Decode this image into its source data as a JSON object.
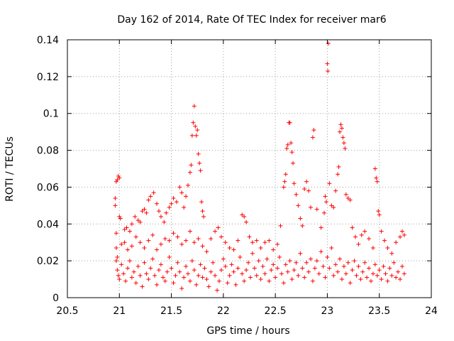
{
  "chart_data": {
    "type": "scatter",
    "title": "Day 162 of 2014, Rate Of TEC Index for receiver mar6",
    "xlabel": "GPS time / hours",
    "ylabel": "ROTI / TECUs",
    "xlim": [
      20.5,
      24
    ],
    "ylim": [
      0,
      0.14
    ],
    "xticks": [
      "20.5",
      "21",
      "21.5",
      "22",
      "22.5",
      "23",
      "23.5",
      "24"
    ],
    "yticks": [
      "0",
      "0.02",
      "0.04",
      "0.06",
      "0.08",
      "0.1",
      "0.12",
      "0.14"
    ],
    "grid": true,
    "marker": "+",
    "series_color": "#ff0000",
    "series": [
      {
        "name": "ROTI",
        "points": [
          [
            20.96,
            0.05
          ],
          [
            20.96,
            0.054
          ],
          [
            20.97,
            0.063
          ],
          [
            20.98,
            0.064
          ],
          [
            20.99,
            0.066
          ],
          [
            21.0,
            0.065
          ],
          [
            20.97,
            0.035
          ],
          [
            21.0,
            0.044
          ],
          [
            21.01,
            0.043
          ],
          [
            20.97,
            0.027
          ],
          [
            20.98,
            0.022
          ],
          [
            21.02,
            0.029
          ],
          [
            21.05,
            0.037
          ],
          [
            21.07,
            0.038
          ],
          [
            21.1,
            0.036
          ],
          [
            21.12,
            0.04
          ],
          [
            21.15,
            0.044
          ],
          [
            21.18,
            0.042
          ],
          [
            21.2,
            0.041
          ],
          [
            21.22,
            0.047
          ],
          [
            21.24,
            0.048
          ],
          [
            21.26,
            0.046
          ],
          [
            21.28,
            0.053
          ],
          [
            21.3,
            0.055
          ],
          [
            21.33,
            0.057
          ],
          [
            21.36,
            0.051
          ],
          [
            21.38,
            0.047
          ],
          [
            21.4,
            0.044
          ],
          [
            21.43,
            0.041
          ],
          [
            21.45,
            0.046
          ],
          [
            21.48,
            0.049
          ],
          [
            21.5,
            0.051
          ],
          [
            21.52,
            0.054
          ],
          [
            21.55,
            0.052
          ],
          [
            21.58,
            0.06
          ],
          [
            21.6,
            0.057
          ],
          [
            21.62,
            0.049
          ],
          [
            21.64,
            0.055
          ],
          [
            21.66,
            0.061
          ],
          [
            21.68,
            0.068
          ],
          [
            21.69,
            0.072
          ],
          [
            21.7,
            0.088
          ],
          [
            21.71,
            0.095
          ],
          [
            21.72,
            0.104
          ],
          [
            21.73,
            0.093
          ],
          [
            21.74,
            0.088
          ],
          [
            21.75,
            0.091
          ],
          [
            21.76,
            0.078
          ],
          [
            21.77,
            0.073
          ],
          [
            21.78,
            0.069
          ],
          [
            21.79,
            0.052
          ],
          [
            21.8,
            0.047
          ],
          [
            21.81,
            0.044
          ],
          [
            21.05,
            0.03
          ],
          [
            21.08,
            0.026
          ],
          [
            21.12,
            0.028
          ],
          [
            21.16,
            0.033
          ],
          [
            21.2,
            0.03
          ],
          [
            21.24,
            0.027
          ],
          [
            21.28,
            0.031
          ],
          [
            21.32,
            0.034
          ],
          [
            21.36,
            0.026
          ],
          [
            21.4,
            0.029
          ],
          [
            21.44,
            0.032
          ],
          [
            21.48,
            0.031
          ],
          [
            21.52,
            0.035
          ],
          [
            21.56,
            0.033
          ],
          [
            21.6,
            0.029
          ],
          [
            21.64,
            0.031
          ],
          [
            21.68,
            0.036
          ],
          [
            21.72,
            0.03
          ],
          [
            21.76,
            0.032
          ],
          [
            21.8,
            0.028
          ],
          [
            21.84,
            0.025
          ],
          [
            21.88,
            0.032
          ],
          [
            21.92,
            0.036
          ],
          [
            21.95,
            0.038
          ],
          [
            21.98,
            0.033
          ],
          [
            22.02,
            0.03
          ],
          [
            22.06,
            0.027
          ],
          [
            22.1,
            0.026
          ],
          [
            22.14,
            0.031
          ],
          [
            22.18,
            0.045
          ],
          [
            22.2,
            0.044
          ],
          [
            22.22,
            0.041
          ],
          [
            22.25,
            0.033
          ],
          [
            22.28,
            0.03
          ],
          [
            22.32,
            0.031
          ],
          [
            22.36,
            0.027
          ],
          [
            22.4,
            0.03
          ],
          [
            22.44,
            0.031
          ],
          [
            22.48,
            0.026
          ],
          [
            22.52,
            0.029
          ],
          [
            22.55,
            0.039
          ],
          [
            22.58,
            0.06
          ],
          [
            22.59,
            0.063
          ],
          [
            22.6,
            0.067
          ],
          [
            22.61,
            0.081
          ],
          [
            22.62,
            0.083
          ],
          [
            22.63,
            0.095
          ],
          [
            22.64,
            0.095
          ],
          [
            22.65,
            0.084
          ],
          [
            22.66,
            0.079
          ],
          [
            22.67,
            0.073
          ],
          [
            22.68,
            0.062
          ],
          [
            22.7,
            0.056
          ],
          [
            22.72,
            0.05
          ],
          [
            22.74,
            0.043
          ],
          [
            22.76,
            0.039
          ],
          [
            22.78,
            0.059
          ],
          [
            22.8,
            0.063
          ],
          [
            22.82,
            0.058
          ],
          [
            22.84,
            0.049
          ],
          [
            22.86,
            0.087
          ],
          [
            22.87,
            0.091
          ],
          [
            22.9,
            0.048
          ],
          [
            22.94,
            0.038
          ],
          [
            22.97,
            0.046
          ],
          [
            22.98,
            0.055
          ],
          [
            22.99,
            0.052
          ],
          [
            23.0,
            0.127
          ],
          [
            23.005,
            0.123
          ],
          [
            23.01,
            0.138
          ],
          [
            23.02,
            0.062
          ],
          [
            23.04,
            0.05
          ],
          [
            23.06,
            0.049
          ],
          [
            23.08,
            0.058
          ],
          [
            23.1,
            0.067
          ],
          [
            23.11,
            0.071
          ],
          [
            23.12,
            0.09
          ],
          [
            23.13,
            0.094
          ],
          [
            23.14,
            0.092
          ],
          [
            23.15,
            0.087
          ],
          [
            23.16,
            0.084
          ],
          [
            23.17,
            0.081
          ],
          [
            23.18,
            0.056
          ],
          [
            23.2,
            0.054
          ],
          [
            23.22,
            0.053
          ],
          [
            23.24,
            0.038
          ],
          [
            23.27,
            0.033
          ],
          [
            23.3,
            0.029
          ],
          [
            23.33,
            0.034
          ],
          [
            23.36,
            0.036
          ],
          [
            23.4,
            0.032
          ],
          [
            23.44,
            0.027
          ],
          [
            23.46,
            0.07
          ],
          [
            23.47,
            0.065
          ],
          [
            23.48,
            0.063
          ],
          [
            23.49,
            0.047
          ],
          [
            23.5,
            0.045
          ],
          [
            23.52,
            0.036
          ],
          [
            23.55,
            0.031
          ],
          [
            23.58,
            0.027
          ],
          [
            23.62,
            0.024
          ],
          [
            23.66,
            0.03
          ],
          [
            23.7,
            0.033
          ],
          [
            23.72,
            0.036
          ],
          [
            23.74,
            0.034
          ],
          [
            20.97,
            0.02
          ],
          [
            20.98,
            0.015
          ],
          [
            20.99,
            0.012
          ],
          [
            21.0,
            0.01
          ],
          [
            21.02,
            0.018
          ],
          [
            21.04,
            0.013
          ],
          [
            21.06,
            0.009
          ],
          [
            21.08,
            0.016
          ],
          [
            21.1,
            0.02
          ],
          [
            21.12,
            0.011
          ],
          [
            21.14,
            0.014
          ],
          [
            21.16,
            0.008
          ],
          [
            21.18,
            0.017
          ],
          [
            21.2,
            0.012
          ],
          [
            21.22,
            0.006
          ],
          [
            21.24,
            0.019
          ],
          [
            21.26,
            0.013
          ],
          [
            21.28,
            0.01
          ],
          [
            21.3,
            0.016
          ],
          [
            21.32,
            0.021
          ],
          [
            21.34,
            0.012
          ],
          [
            21.36,
            0.007
          ],
          [
            21.38,
            0.015
          ],
          [
            21.4,
            0.018
          ],
          [
            21.42,
            0.011
          ],
          [
            21.44,
            0.009
          ],
          [
            21.46,
            0.014
          ],
          [
            21.48,
            0.022
          ],
          [
            21.5,
            0.016
          ],
          [
            21.52,
            0.008
          ],
          [
            21.54,
            0.012
          ],
          [
            21.56,
            0.019
          ],
          [
            21.58,
            0.014
          ],
          [
            21.6,
            0.005
          ],
          [
            21.62,
            0.011
          ],
          [
            21.64,
            0.017
          ],
          [
            21.66,
            0.013
          ],
          [
            21.68,
            0.009
          ],
          [
            21.7,
            0.02
          ],
          [
            21.72,
            0.015
          ],
          [
            21.74,
            0.007
          ],
          [
            21.76,
            0.012
          ],
          [
            21.78,
            0.018
          ],
          [
            21.8,
            0.011
          ],
          [
            21.82,
            0.016
          ],
          [
            21.84,
            0.01
          ],
          [
            21.86,
            0.006
          ],
          [
            21.88,
            0.014
          ],
          [
            21.9,
            0.019
          ],
          [
            21.92,
            0.012
          ],
          [
            21.94,
            0.004
          ],
          [
            21.96,
            0.009
          ],
          [
            21.98,
            0.015
          ],
          [
            22.0,
            0.021
          ],
          [
            22.02,
            0.017
          ],
          [
            22.04,
            0.008
          ],
          [
            22.06,
            0.012
          ],
          [
            22.08,
            0.018
          ],
          [
            22.1,
            0.014
          ],
          [
            22.12,
            0.007
          ],
          [
            22.14,
            0.016
          ],
          [
            22.16,
            0.022
          ],
          [
            22.18,
            0.013
          ],
          [
            22.2,
            0.009
          ],
          [
            22.22,
            0.015
          ],
          [
            22.24,
            0.019
          ],
          [
            22.26,
            0.011
          ],
          [
            22.28,
            0.024
          ],
          [
            22.3,
            0.016
          ],
          [
            22.32,
            0.012
          ],
          [
            22.34,
            0.02
          ],
          [
            22.36,
            0.01
          ],
          [
            22.38,
            0.017
          ],
          [
            22.4,
            0.013
          ],
          [
            22.42,
            0.021
          ],
          [
            22.44,
            0.009
          ],
          [
            22.46,
            0.015
          ],
          [
            22.48,
            0.018
          ],
          [
            22.5,
            0.011
          ],
          [
            22.52,
            0.016
          ],
          [
            22.54,
            0.022
          ],
          [
            22.56,
            0.013
          ],
          [
            22.58,
            0.008
          ],
          [
            22.6,
            0.018
          ],
          [
            22.62,
            0.014
          ],
          [
            22.64,
            0.02
          ],
          [
            22.66,
            0.01
          ],
          [
            22.68,
            0.015
          ],
          [
            22.7,
            0.019
          ],
          [
            22.72,
            0.012
          ],
          [
            22.74,
            0.024
          ],
          [
            22.76,
            0.016
          ],
          [
            22.78,
            0.011
          ],
          [
            22.8,
            0.019
          ],
          [
            22.82,
            0.014
          ],
          [
            22.84,
            0.021
          ],
          [
            22.86,
            0.009
          ],
          [
            22.88,
            0.016
          ],
          [
            22.9,
            0.02
          ],
          [
            22.92,
            0.013
          ],
          [
            22.94,
            0.025
          ],
          [
            22.96,
            0.017
          ],
          [
            22.98,
            0.011
          ],
          [
            23.0,
            0.022
          ],
          [
            23.02,
            0.016
          ],
          [
            23.04,
            0.027
          ],
          [
            23.06,
            0.012
          ],
          [
            23.08,
            0.018
          ],
          [
            23.1,
            0.014
          ],
          [
            23.12,
            0.021
          ],
          [
            23.14,
            0.01
          ],
          [
            23.16,
            0.017
          ],
          [
            23.18,
            0.013
          ],
          [
            23.2,
            0.019
          ],
          [
            23.22,
            0.008
          ],
          [
            23.24,
            0.015
          ],
          [
            23.26,
            0.02
          ],
          [
            23.28,
            0.012
          ],
          [
            23.3,
            0.017
          ],
          [
            23.32,
            0.01
          ],
          [
            23.34,
            0.014
          ],
          [
            23.36,
            0.019
          ],
          [
            23.38,
            0.011
          ],
          [
            23.4,
            0.016
          ],
          [
            23.42,
            0.009
          ],
          [
            23.44,
            0.013
          ],
          [
            23.46,
            0.018
          ],
          [
            23.48,
            0.012
          ],
          [
            23.5,
            0.015
          ],
          [
            23.52,
            0.01
          ],
          [
            23.54,
            0.017
          ],
          [
            23.56,
            0.013
          ],
          [
            23.58,
            0.009
          ],
          [
            23.6,
            0.016
          ],
          [
            23.62,
            0.012
          ],
          [
            23.64,
            0.019
          ],
          [
            23.66,
            0.011
          ],
          [
            23.68,
            0.014
          ],
          [
            23.7,
            0.01
          ],
          [
            23.72,
            0.017
          ],
          [
            23.74,
            0.013
          ]
        ]
      }
    ]
  }
}
